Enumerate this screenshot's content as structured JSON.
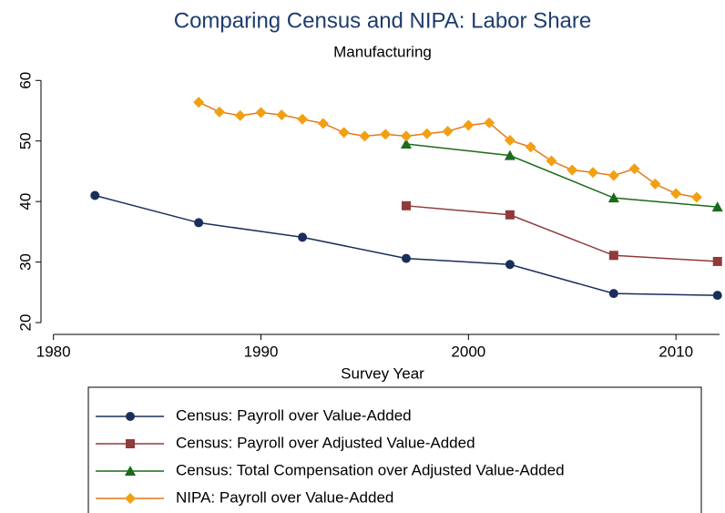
{
  "chart_data": {
    "type": "line",
    "title": "Comparing Census and NIPA: Labor Share",
    "subtitle": "Manufacturing",
    "x_label": "Survey Year",
    "xlim": [
      1979.4,
      2012.1
    ],
    "xticks": [
      1980,
      1990,
      2000,
      2010
    ],
    "ylim": [
      18.5,
      62
    ],
    "yticks": [
      20,
      30,
      40,
      50,
      60
    ],
    "series": [
      {
        "name": "Census: Payroll over Value-Added",
        "color": "#1a2e5a",
        "marker": "circle",
        "x": [
          1982,
          1987,
          1992,
          1997,
          2002,
          2007,
          2012
        ],
        "values": [
          41,
          36.5,
          34.1,
          30.6,
          29.6,
          24.8,
          24.5
        ]
      },
      {
        "name": "Census: Payroll over Adjusted Value-Added",
        "color": "#903a3a",
        "marker": "square",
        "x": [
          1997,
          2002,
          2007,
          2012
        ],
        "values": [
          39.3,
          37.8,
          31.1,
          30.1
        ]
      },
      {
        "name": "Census: Total Compensation over Adjusted Value-Added",
        "color": "#1a6b1a",
        "marker": "triangle",
        "x": [
          1997,
          2002,
          2007,
          2012
        ],
        "values": [
          49.5,
          47.6,
          40.6,
          39.1
        ]
      },
      {
        "name": "NIPA: Payroll over Value-Added",
        "color": "#e8771a",
        "marker": "diamond",
        "x": [
          1987,
          1988,
          1989,
          1990,
          1991,
          1992,
          1993,
          1994,
          1995,
          1996,
          1997,
          1998,
          1999,
          2000,
          2001,
          2002,
          2003,
          2004,
          2005,
          2006,
          2007,
          2008,
          2009,
          2010,
          2011
        ],
        "values": [
          56.4,
          54.8,
          54.2,
          54.7,
          54.3,
          53.6,
          52.9,
          51.4,
          50.8,
          51.1,
          50.8,
          51.2,
          51.6,
          52.6,
          53.0,
          50.1,
          49.0,
          46.7,
          45.2,
          44.8,
          44.3,
          45.4,
          42.9,
          41.3,
          40.7
        ]
      }
    ]
  }
}
